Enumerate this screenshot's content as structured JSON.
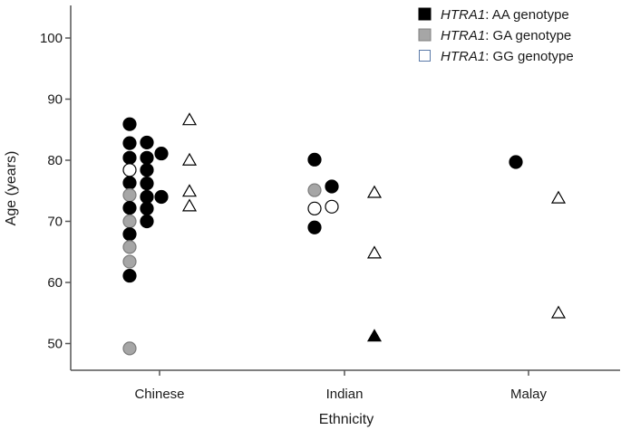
{
  "chart_data": {
    "type": "scatter",
    "xlabel": "Ethnicity",
    "ylabel": "Age (years)",
    "ylim": [
      45,
      104
    ],
    "yticks": [
      50,
      60,
      70,
      80,
      90,
      100
    ],
    "categories": [
      "Chinese",
      "Indian",
      "Malay"
    ],
    "grid": false,
    "legend_position": "top-right",
    "legend": [
      {
        "gene": "HTRA1",
        "suffix": ": AA genotype",
        "swatch": "filled-square",
        "color": "#000000"
      },
      {
        "gene": "HTRA1",
        "suffix": ": GA genotype",
        "swatch": "gray-square",
        "color": "#a6a6a6"
      },
      {
        "gene": "HTRA1",
        "suffix": ": GG genotype",
        "swatch": "open-square",
        "color": "#ffffff"
      }
    ],
    "marker_colors": {
      "AA": "#000000",
      "GA": "#a6a6a6",
      "GG": "#ffffff"
    },
    "points": [
      {
        "category": "Chinese",
        "group": "left",
        "genotype": "AA",
        "marker": "circle",
        "y": 85.9
      },
      {
        "category": "Chinese",
        "group": "left",
        "genotype": "AA",
        "marker": "circle",
        "y": 82.8
      },
      {
        "category": "Chinese",
        "group": "left",
        "genotype": "AA",
        "marker": "circle",
        "y": 80.4
      },
      {
        "category": "Chinese",
        "group": "left",
        "genotype": "GG",
        "marker": "circle",
        "y": 78.4
      },
      {
        "category": "Chinese",
        "group": "left",
        "genotype": "AA",
        "marker": "circle",
        "y": 76.3
      },
      {
        "category": "Chinese",
        "group": "left",
        "genotype": "GA",
        "marker": "circle",
        "y": 74.3
      },
      {
        "category": "Chinese",
        "group": "left",
        "genotype": "AA",
        "marker": "circle",
        "y": 72.2
      },
      {
        "category": "Chinese",
        "group": "left",
        "genotype": "GA",
        "marker": "circle",
        "y": 70.0
      },
      {
        "category": "Chinese",
        "group": "left",
        "genotype": "AA",
        "marker": "circle",
        "y": 67.9
      },
      {
        "category": "Chinese",
        "group": "left",
        "genotype": "GA",
        "marker": "circle",
        "y": 65.8
      },
      {
        "category": "Chinese",
        "group": "left",
        "genotype": "GA",
        "marker": "circle",
        "y": 63.4
      },
      {
        "category": "Chinese",
        "group": "left",
        "genotype": "AA",
        "marker": "circle",
        "y": 61.1
      },
      {
        "category": "Chinese",
        "group": "left",
        "genotype": "GA",
        "marker": "circle",
        "y": 49.2
      },
      {
        "category": "Chinese",
        "group": "mid",
        "genotype": "AA",
        "marker": "circle",
        "y": 82.9
      },
      {
        "category": "Chinese",
        "group": "mid",
        "genotype": "AA",
        "marker": "circle",
        "y": 80.4
      },
      {
        "category": "Chinese",
        "group": "mid",
        "genotype": "AA",
        "marker": "circle",
        "y": 78.4
      },
      {
        "category": "Chinese",
        "group": "mid",
        "genotype": "AA",
        "marker": "circle",
        "y": 76.2
      },
      {
        "category": "Chinese",
        "group": "mid",
        "genotype": "AA",
        "marker": "circle",
        "y": 74.0
      },
      {
        "category": "Chinese",
        "group": "mid",
        "genotype": "AA",
        "marker": "circle",
        "y": 72.1
      },
      {
        "category": "Chinese",
        "group": "mid",
        "genotype": "AA",
        "marker": "circle",
        "y": 70.0
      },
      {
        "category": "Chinese",
        "group": "right",
        "genotype": "AA",
        "marker": "circle",
        "y": 81.1
      },
      {
        "category": "Chinese",
        "group": "right",
        "genotype": "AA",
        "marker": "circle",
        "y": 74.0
      },
      {
        "category": "Chinese",
        "group": "tri",
        "genotype": "GG",
        "marker": "triangle",
        "y": 86.6
      },
      {
        "category": "Chinese",
        "group": "tri",
        "genotype": "GG",
        "marker": "triangle",
        "y": 80.0
      },
      {
        "category": "Chinese",
        "group": "tri",
        "genotype": "GG",
        "marker": "triangle",
        "y": 74.9
      },
      {
        "category": "Chinese",
        "group": "tri",
        "genotype": "GG",
        "marker": "triangle",
        "y": 72.5
      },
      {
        "category": "Indian",
        "group": "left",
        "genotype": "AA",
        "marker": "circle",
        "y": 80.1
      },
      {
        "category": "Indian",
        "group": "left",
        "genotype": "GA",
        "marker": "circle",
        "y": 75.1
      },
      {
        "category": "Indian",
        "group": "left",
        "genotype": "GG",
        "marker": "circle",
        "y": 72.1
      },
      {
        "category": "Indian",
        "group": "left",
        "genotype": "AA",
        "marker": "circle",
        "y": 69.0
      },
      {
        "category": "Indian",
        "group": "mid",
        "genotype": "AA",
        "marker": "circle",
        "y": 75.7
      },
      {
        "category": "Indian",
        "group": "mid",
        "genotype": "GG",
        "marker": "circle",
        "y": 72.4
      },
      {
        "category": "Indian",
        "group": "tri",
        "genotype": "GG",
        "marker": "triangle",
        "y": 74.7
      },
      {
        "category": "Indian",
        "group": "tri",
        "genotype": "GG",
        "marker": "triangle",
        "y": 64.8
      },
      {
        "category": "Indian",
        "group": "tri",
        "genotype": "AA",
        "marker": "triangle",
        "y": 51.2
      },
      {
        "category": "Malay",
        "group": "mid",
        "genotype": "AA",
        "marker": "circle",
        "y": 79.7
      },
      {
        "category": "Malay",
        "group": "tri",
        "genotype": "GG",
        "marker": "triangle",
        "y": 73.8
      },
      {
        "category": "Malay",
        "group": "tri",
        "genotype": "GG",
        "marker": "triangle",
        "y": 55.0
      }
    ]
  }
}
